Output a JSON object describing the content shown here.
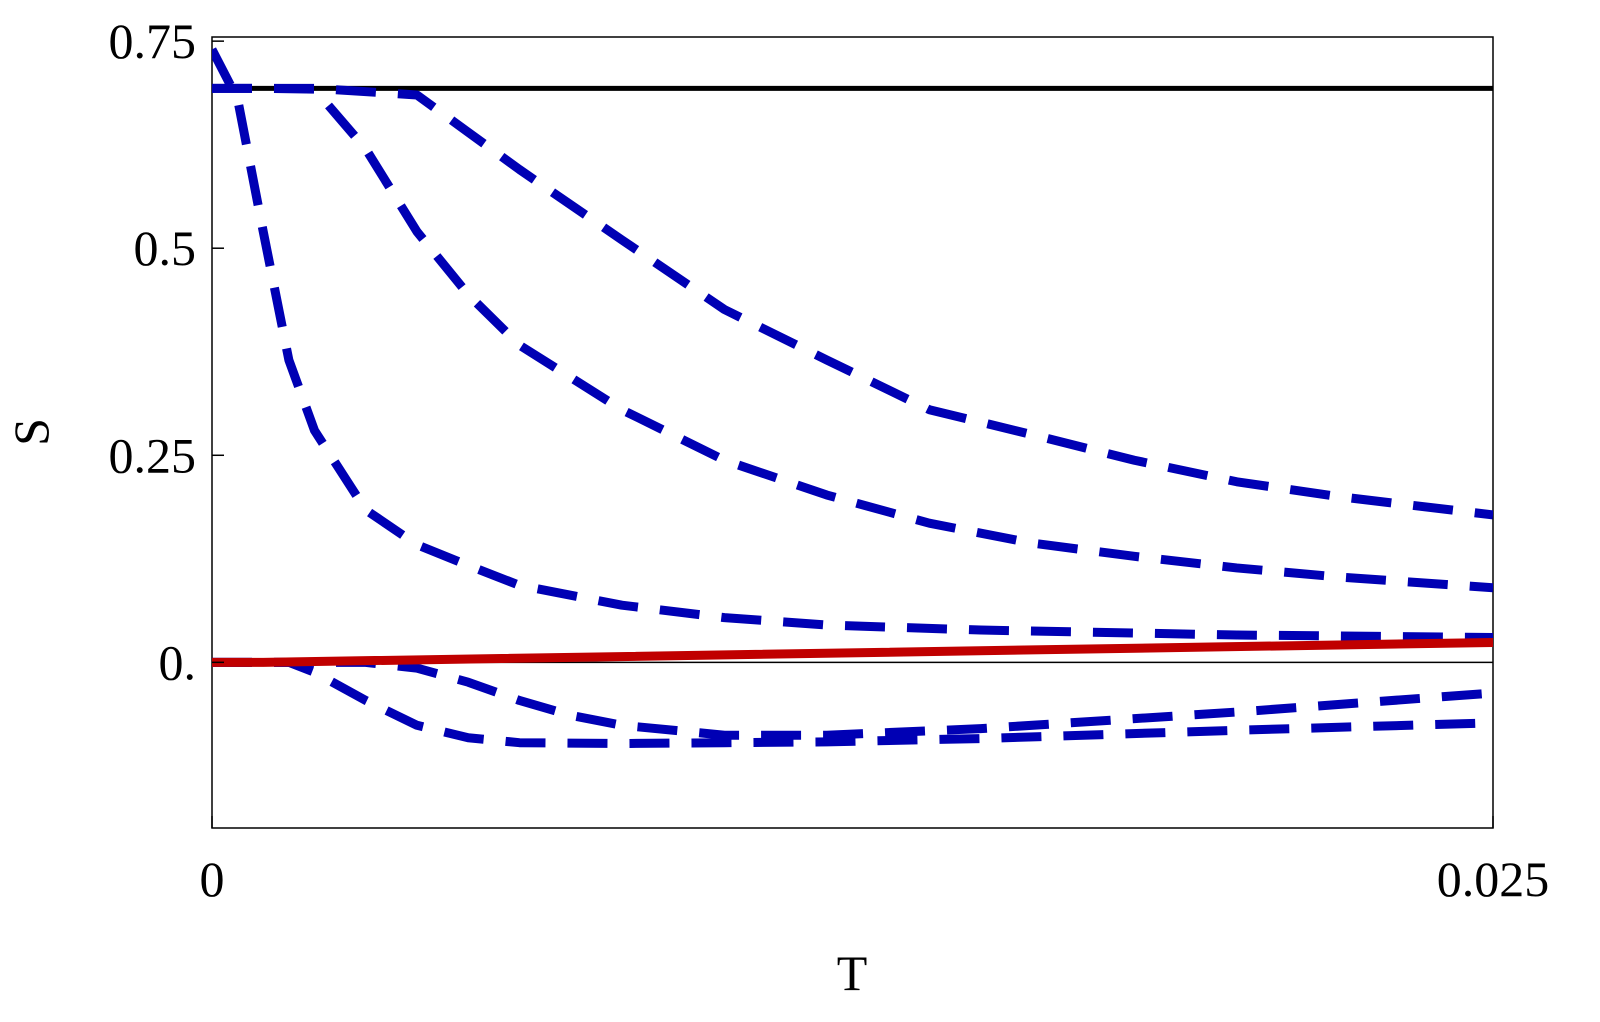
{
  "chart_data": {
    "type": "line",
    "x_label": "T",
    "y_label": "S",
    "xlim": [
      0,
      0.025
    ],
    "ylim": [
      -0.2,
      0.755
    ],
    "xticks": [
      0,
      0.025
    ],
    "yticks": [
      {
        "value": 0,
        "label": "0."
      },
      0.25,
      0.5,
      0.75
    ],
    "series": [
      {
        "color": "#000000",
        "style": "solid",
        "width": 5,
        "x": [
          0,
          0.025
        ],
        "values": [
          0.693,
          0.693
        ]
      },
      {
        "color": "#0000b4",
        "style": "dashed",
        "width": 9,
        "x": [
          0,
          0.002,
          0.004,
          0.006,
          0.008,
          0.01,
          0.012,
          0.014,
          0.016,
          0.018,
          0.02,
          0.022,
          0.025
        ],
        "values": [
          0.693,
          0.693,
          0.685,
          0.595,
          0.51,
          0.426,
          0.365,
          0.305,
          0.275,
          0.244,
          0.218,
          0.2,
          0.178
        ]
      },
      {
        "color": "#0000b4",
        "style": "dashed",
        "width": 9,
        "x": [
          0,
          0.001,
          0.002,
          0.003,
          0.004,
          0.005,
          0.006,
          0.008,
          0.01,
          0.012,
          0.014,
          0.016,
          0.018,
          0.02,
          0.022,
          0.025
        ],
        "values": [
          0.693,
          0.693,
          0.692,
          0.62,
          0.52,
          0.444,
          0.383,
          0.305,
          0.244,
          0.202,
          0.168,
          0.144,
          0.128,
          0.114,
          0.103,
          0.09
        ]
      },
      {
        "color": "#0000b4",
        "style": "dashed",
        "width": 9,
        "x": [
          0,
          0.0005,
          0.001,
          0.0015,
          0.002,
          0.003,
          0.004,
          0.005,
          0.006,
          0.008,
          0.01,
          0.012,
          0.015,
          0.02,
          0.025
        ],
        "values": [
          0.74,
          0.68,
          0.52,
          0.365,
          0.28,
          0.184,
          0.142,
          0.117,
          0.093,
          0.069,
          0.054,
          0.045,
          0.039,
          0.033,
          0.03
        ]
      },
      {
        "color": "#0000b4",
        "style": "dashed",
        "width": 9,
        "x": [
          0,
          0.0015,
          0.002,
          0.003,
          0.004,
          0.005,
          0.006,
          0.008,
          0.01,
          0.012,
          0.015,
          0.02,
          0.025
        ],
        "values": [
          0,
          0,
          -0.012,
          -0.046,
          -0.076,
          -0.091,
          -0.097,
          -0.098,
          -0.097,
          -0.096,
          -0.092,
          -0.082,
          -0.073
        ]
      },
      {
        "color": "#0000b4",
        "style": "dashed",
        "width": 9,
        "x": [
          0,
          0.003,
          0.004,
          0.005,
          0.006,
          0.007,
          0.008,
          0.01,
          0.012,
          0.015,
          0.02,
          0.025
        ],
        "values": [
          0,
          0,
          -0.007,
          -0.024,
          -0.046,
          -0.064,
          -0.076,
          -0.088,
          -0.088,
          -0.08,
          -0.06,
          -0.037
        ]
      },
      {
        "color": "#c00000",
        "style": "solid",
        "width": 9,
        "x": [
          0,
          0.001,
          0.025
        ],
        "values": [
          0,
          0,
          0.024
        ]
      }
    ]
  }
}
